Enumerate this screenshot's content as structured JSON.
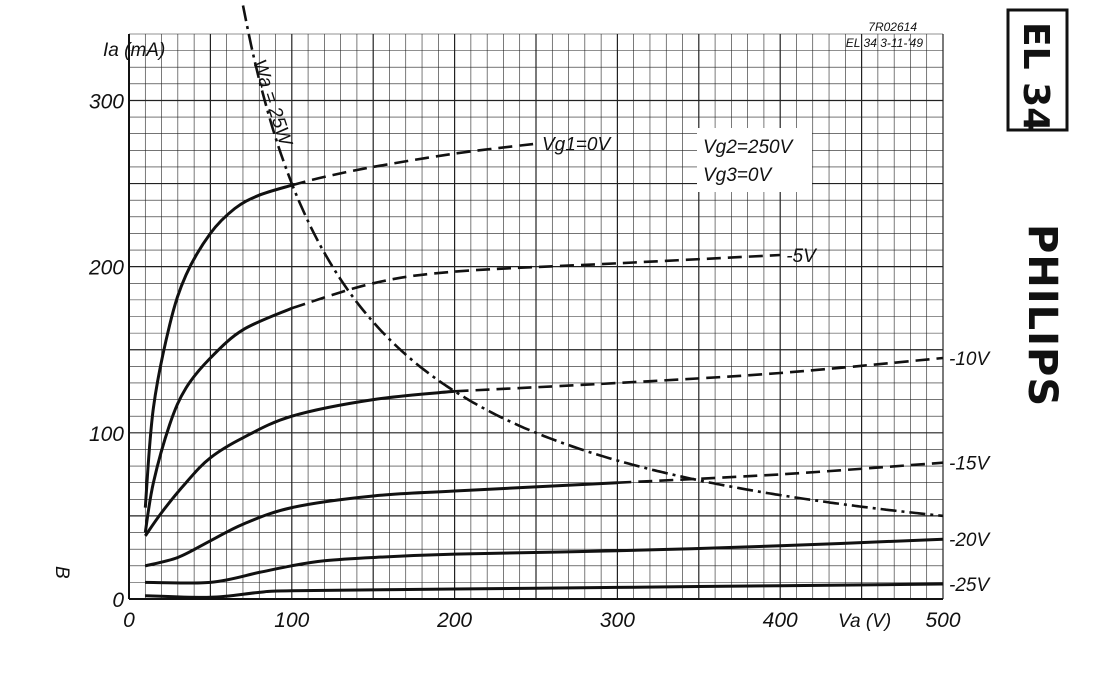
{
  "header": {
    "ref_code": "7R02614",
    "ref_date": "EL 34 3-11-'49"
  },
  "tube_label": "EL 34",
  "brand_label": "PHILIPS",
  "side_mark": "B",
  "chart_data": {
    "type": "line",
    "title": "",
    "xlabel": "Va (V)",
    "ylabel": "Ia (mA)",
    "xlim": [
      0,
      500
    ],
    "ylim": [
      0,
      340
    ],
    "x_ticks": [
      0,
      100,
      200,
      300,
      400,
      500
    ],
    "y_ticks": [
      0,
      100,
      200,
      300
    ],
    "grid": true,
    "conditions": [
      "Vg2=250V",
      "Vg3=0V"
    ],
    "series": [
      {
        "name": "Vg1=0V",
        "color": "#111111",
        "x": [
          10,
          15,
          25,
          35,
          50,
          65,
          80,
          100,
          120,
          150,
          200,
          250
        ],
        "y": [
          55,
          115,
          165,
          195,
          220,
          235,
          243,
          249,
          254,
          260,
          268,
          274
        ],
        "solid_until": 100
      },
      {
        "name": "-5V",
        "color": "#111111",
        "x": [
          10,
          15,
          25,
          35,
          50,
          70,
          100,
          150,
          200,
          300,
          400
        ],
        "y": [
          40,
          70,
          105,
          127,
          145,
          162,
          175,
          190,
          197,
          202,
          207
        ],
        "solid_until": 135
      },
      {
        "name": "-10V",
        "color": "#111111",
        "x": [
          10,
          20,
          35,
          50,
          70,
          100,
          150,
          200,
          300,
          400,
          500
        ],
        "y": [
          38,
          52,
          70,
          85,
          97,
          110,
          120,
          125,
          130,
          136,
          145
        ],
        "solid_until": 200
      },
      {
        "name": "-15V",
        "color": "#111111",
        "x": [
          10,
          30,
          50,
          70,
          100,
          150,
          200,
          300,
          400,
          500
        ],
        "y": [
          20,
          25,
          35,
          45,
          55,
          62,
          65,
          70,
          75,
          82
        ],
        "solid_until": 300
      },
      {
        "name": "-20V",
        "color": "#111111",
        "x": [
          10,
          50,
          80,
          100,
          120,
          150,
          200,
          300,
          400,
          500
        ],
        "y": [
          10,
          10,
          16,
          20,
          23,
          25,
          27,
          29,
          32,
          36
        ],
        "solid_until": 500
      },
      {
        "name": "-25V",
        "color": "#111111",
        "x": [
          10,
          50,
          80,
          100,
          200,
          300,
          400,
          500
        ],
        "y": [
          2,
          1,
          4,
          5,
          6,
          7,
          8,
          9
        ],
        "solid_until": 500
      }
    ],
    "dissipation_curve": {
      "label": "Wa = 25W",
      "watts": 25
    }
  }
}
